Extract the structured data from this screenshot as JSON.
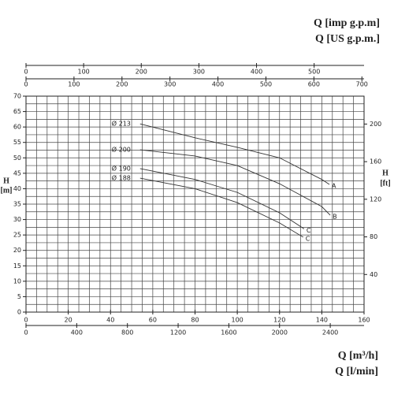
{
  "chart_data": {
    "type": "line",
    "title_top_1": "Q [imp g.p.m]",
    "title_top_2": "Q [US g.p.m.]",
    "xlabel_1": "Q [m³/h]",
    "xlabel_2": "Q [l/min]",
    "ylabel": "H",
    "yunit": "[m]",
    "y2label": "H",
    "y2unit": "[ft]",
    "xlim": [
      0,
      160
    ],
    "xticks": [
      0,
      20,
      40,
      60,
      80,
      100,
      120,
      140,
      160
    ],
    "ylim": [
      0,
      70
    ],
    "yticks": [
      0,
      5,
      10,
      15,
      20,
      25,
      30,
      35,
      40,
      45,
      50,
      55,
      60,
      65,
      70
    ],
    "y2lim": [
      0,
      229.66
    ],
    "y2ticks": [
      40,
      80,
      120,
      160,
      200
    ],
    "x_lmin_lim": [
      0,
      2666.67
    ],
    "x_lmin_ticks": [
      0,
      400,
      800,
      1200,
      1600,
      2000,
      2400
    ],
    "x_us_lim": [
      0,
      704.5
    ],
    "x_us_ticks": [
      0,
      100,
      200,
      300,
      400,
      500,
      600,
      700
    ],
    "x_imp_lim": [
      0,
      586.6
    ],
    "x_imp_ticks": [
      0,
      100,
      200,
      300,
      400,
      500
    ],
    "grid": true,
    "minor_grid": {
      "x": 5,
      "y": 2.5
    },
    "color": "#333333",
    "series": [
      {
        "name": "Ø 213",
        "end_label": "A",
        "x": [
          54,
          80,
          100,
          120,
          140,
          143.6
        ],
        "values": [
          61,
          56.5,
          53.4,
          50,
          43,
          41.4
        ]
      },
      {
        "name": "Ø 200",
        "end_label": "B",
        "x": [
          54,
          80,
          100,
          120,
          140,
          144
        ],
        "values": [
          52.6,
          50.6,
          47.5,
          41.6,
          34.2,
          31.4
        ]
      },
      {
        "name": "Ø 190",
        "end_label": "C",
        "x": [
          54,
          80,
          100,
          120,
          131.6
        ],
        "values": [
          46.5,
          43,
          38.8,
          32.2,
          27
        ]
      },
      {
        "name": "Ø 188",
        "end_label": "C",
        "x": [
          54,
          80,
          100,
          120,
          131.2
        ],
        "values": [
          43.4,
          40,
          35.5,
          28.9,
          24.3
        ]
      }
    ]
  }
}
